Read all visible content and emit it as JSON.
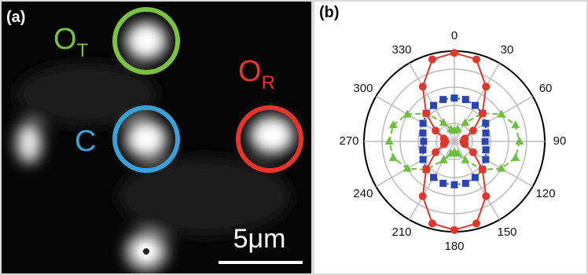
{
  "panel_a": {
    "label": "(a)",
    "markers": [
      {
        "text": "O",
        "subscript": "T",
        "color": "#7cc242"
      },
      {
        "text": "C",
        "color": "#3aa0d8"
      },
      {
        "text": "O",
        "subscript": "R",
        "color": "#e8352b"
      }
    ],
    "scale_bar": "5μm"
  },
  "chart_data": {
    "type": "polar",
    "label": "(b)",
    "direction": "clockwise",
    "zero": "top",
    "rlim": [
      0,
      5
    ],
    "rticks": [
      1,
      2,
      3,
      4,
      5
    ],
    "thetaticks": [
      0,
      30,
      60,
      90,
      120,
      150,
      180,
      210,
      240,
      270,
      300,
      330
    ],
    "theta": [
      0,
      15,
      30,
      45,
      60,
      75,
      90,
      105,
      120,
      135,
      150,
      165,
      180,
      195,
      210,
      225,
      240,
      255,
      270,
      285,
      300,
      315,
      330,
      345
    ],
    "series": [
      {
        "color": "#2a45b0",
        "marker": "square",
        "line_style": "dotted",
        "values": [
          2.4,
          2.4,
          2.3,
          2.2,
          2.0,
          1.8,
          1.7,
          1.8,
          2.0,
          2.2,
          2.3,
          2.4,
          2.4,
          2.4,
          2.3,
          2.2,
          2.0,
          1.8,
          1.7,
          1.8,
          2.0,
          2.2,
          2.3,
          2.4
        ]
      },
      {
        "color": "#6cbf3c",
        "marker": "triangle",
        "line_style": "dashed",
        "values": [
          0.6,
          0.7,
          1.2,
          2.2,
          3.0,
          3.5,
          3.6,
          3.5,
          3.0,
          2.2,
          1.2,
          0.7,
          0.6,
          0.7,
          1.2,
          2.2,
          3.0,
          3.5,
          3.6,
          3.5,
          3.0,
          2.2,
          1.2,
          0.7
        ]
      },
      {
        "color": "#e0362c",
        "marker": "circle",
        "line_style": "solid",
        "values": [
          4.9,
          4.7,
          3.5,
          2.2,
          1.2,
          0.6,
          0.5,
          0.6,
          1.2,
          2.2,
          3.5,
          4.7,
          4.9,
          4.7,
          3.5,
          2.2,
          1.2,
          0.6,
          0.5,
          0.6,
          1.2,
          2.2,
          3.5,
          4.7
        ]
      }
    ]
  }
}
